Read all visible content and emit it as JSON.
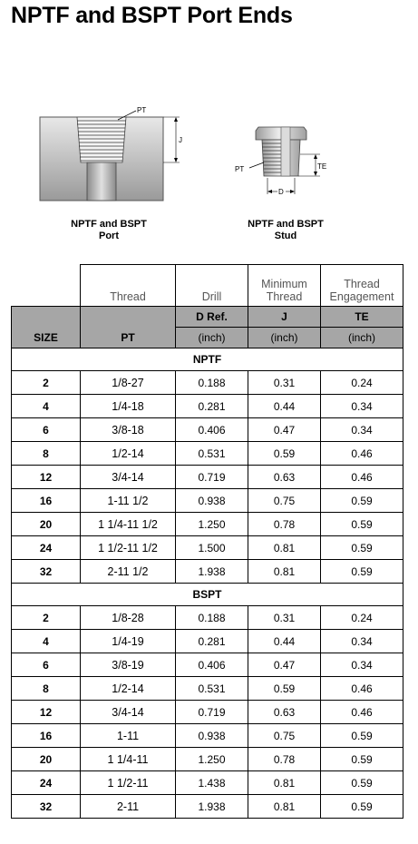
{
  "title": "NPTF and BSPT Port Ends",
  "diagrams": {
    "port": {
      "caption_line1": "NPTF and BSPT",
      "caption_line2": "Port",
      "label_pt": "PT",
      "label_j": "J"
    },
    "stud": {
      "caption_line1": "NPTF and BSPT",
      "caption_line2": "Stud",
      "label_pt": "PT",
      "label_te": "TE",
      "label_d": "D"
    }
  },
  "table": {
    "labels": {
      "thread": "Thread",
      "drill": "Drill",
      "min_thread_1": "Minimum",
      "min_thread_2": "Thread",
      "engagement_1": "Thread",
      "engagement_2": "Engagement"
    },
    "header": {
      "size": "SIZE",
      "pt": "PT",
      "d_ref": "D Ref.",
      "j": "J",
      "te": "TE",
      "unit": "(inch)"
    },
    "sections": [
      {
        "name": "NPTF",
        "rows": [
          {
            "size": "2",
            "pt": "1/8-27",
            "d": "0.188",
            "j": "0.31",
            "te": "0.24"
          },
          {
            "size": "4",
            "pt": "1/4-18",
            "d": "0.281",
            "j": "0.44",
            "te": "0.34"
          },
          {
            "size": "6",
            "pt": "3/8-18",
            "d": "0.406",
            "j": "0.47",
            "te": "0.34"
          },
          {
            "size": "8",
            "pt": "1/2-14",
            "d": "0.531",
            "j": "0.59",
            "te": "0.46"
          },
          {
            "size": "12",
            "pt": "3/4-14",
            "d": "0.719",
            "j": "0.63",
            "te": "0.46"
          },
          {
            "size": "16",
            "pt": "1-11 1/2",
            "d": "0.938",
            "j": "0.75",
            "te": "0.59"
          },
          {
            "size": "20",
            "pt": "1 1/4-11 1/2",
            "d": "1.250",
            "j": "0.78",
            "te": "0.59"
          },
          {
            "size": "24",
            "pt": "1 1/2-11 1/2",
            "d": "1.500",
            "j": "0.81",
            "te": "0.59"
          },
          {
            "size": "32",
            "pt": "2-11 1/2",
            "d": "1.938",
            "j": "0.81",
            "te": "0.59"
          }
        ]
      },
      {
        "name": "BSPT",
        "rows": [
          {
            "size": "2",
            "pt": "1/8-28",
            "d": "0.188",
            "j": "0.31",
            "te": "0.24"
          },
          {
            "size": "4",
            "pt": "1/4-19",
            "d": "0.281",
            "j": "0.44",
            "te": "0.34"
          },
          {
            "size": "6",
            "pt": "3/8-19",
            "d": "0.406",
            "j": "0.47",
            "te": "0.34"
          },
          {
            "size": "8",
            "pt": "1/2-14",
            "d": "0.531",
            "j": "0.59",
            "te": "0.46"
          },
          {
            "size": "12",
            "pt": "3/4-14",
            "d": "0.719",
            "j": "0.63",
            "te": "0.46"
          },
          {
            "size": "16",
            "pt": "1-11",
            "d": "0.938",
            "j": "0.75",
            "te": "0.59"
          },
          {
            "size": "20",
            "pt": "1 1/4-11",
            "d": "1.250",
            "j": "0.78",
            "te": "0.59"
          },
          {
            "size": "24",
            "pt": "1 1/2-11",
            "d": "1.438",
            "j": "0.81",
            "te": "0.59"
          },
          {
            "size": "32",
            "pt": "2-11",
            "d": "1.938",
            "j": "0.81",
            "te": "0.59"
          }
        ]
      }
    ]
  }
}
